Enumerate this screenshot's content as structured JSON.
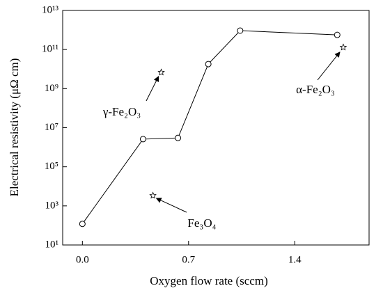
{
  "chart_data": {
    "type": "line",
    "log_y": true,
    "x_label": "Oxygen flow rate (sccm)",
    "y_label": "Electrical resistivity (μΩ cm)",
    "x": [
      0.0,
      0.4,
      0.63,
      0.83,
      1.04,
      1.68
    ],
    "values": [
      120,
      2600000,
      3000000,
      18000000000,
      930000000000,
      560000000000
    ],
    "color": "#000000",
    "xlim": [
      -0.13,
      1.89
    ],
    "xticks": [
      {
        "value": 0,
        "label": "0.0"
      },
      0.7,
      1.4
    ],
    "ylim": [
      10,
      10000000000000
    ],
    "yticks": [
      {
        "value": 10,
        "label": "10¹"
      },
      {
        "value": 1000,
        "label": "10³"
      },
      {
        "value": 100000,
        "label": "10⁵"
      },
      {
        "value": 10000000,
        "label": "10⁷"
      },
      {
        "value": 1000000000,
        "label": "10⁹"
      },
      {
        "value": 100000000000,
        "label": "10¹¹"
      },
      {
        "value": 10000000000000,
        "label": "10¹³"
      }
    ],
    "annotations": [
      {
        "text": "γ-Fe₂O₃",
        "x": 0.52,
        "y": 6800000000
      },
      {
        "text": "Fe₃O₄",
        "x": 0.465,
        "y": 3400
      },
      {
        "text": "α-Fe₂O₃",
        "x": 1.72,
        "y": 130000000000
      }
    ]
  }
}
